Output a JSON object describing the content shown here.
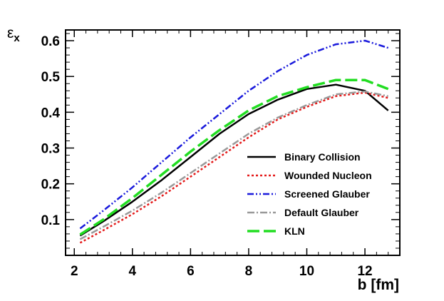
{
  "chart_data": {
    "type": "line",
    "title": "",
    "xlabel": "b [fm]",
    "ylabel": "ε",
    "ylabel_subscript": "x",
    "xlim": [
      1.7,
      13.2
    ],
    "ylim": [
      0.0,
      0.63
    ],
    "xticks": [
      2,
      4,
      6,
      8,
      10,
      12
    ],
    "yticks": [
      0.1,
      0.2,
      0.3,
      0.4,
      0.5,
      0.6
    ],
    "xtick_labels": [
      "2",
      "4",
      "6",
      "8",
      "10",
      "12"
    ],
    "ytick_labels": [
      "0.1",
      "0.2",
      "0.3",
      "0.4",
      "0.5",
      "0.6"
    ],
    "grid": false,
    "legend_position": "center-right",
    "x": [
      2.2,
      3,
      4,
      5,
      6,
      7,
      8,
      9,
      10,
      11,
      12,
      12.8
    ],
    "series": [
      {
        "name": "Binary Collision",
        "color": "#000000",
        "dash": "solid",
        "values": [
          0.055,
          0.095,
          0.15,
          0.21,
          0.275,
          0.34,
          0.395,
          0.435,
          0.465,
          0.477,
          0.46,
          0.405
        ]
      },
      {
        "name": "Wounded Nucleon",
        "color": "#e41a1a",
        "dash": "dotted",
        "values": [
          0.035,
          0.07,
          0.115,
          0.165,
          0.22,
          0.275,
          0.33,
          0.38,
          0.415,
          0.445,
          0.455,
          0.44
        ]
      },
      {
        "name": "Screened Glauber",
        "color": "#1a1adc",
        "dash": "dashdotdot",
        "values": [
          0.075,
          0.125,
          0.19,
          0.26,
          0.33,
          0.395,
          0.46,
          0.515,
          0.56,
          0.59,
          0.6,
          0.58
        ]
      },
      {
        "name": "Default Glauber",
        "color": "#999999",
        "dash": "dashdot",
        "values": [
          0.045,
          0.08,
          0.125,
          0.175,
          0.23,
          0.285,
          0.34,
          0.385,
          0.42,
          0.45,
          0.458,
          0.445
        ]
      },
      {
        "name": "KLN",
        "color": "#22dd22",
        "dash": "longdash",
        "values": [
          0.058,
          0.1,
          0.16,
          0.225,
          0.29,
          0.35,
          0.405,
          0.445,
          0.47,
          0.49,
          0.49,
          0.465
        ]
      }
    ]
  }
}
